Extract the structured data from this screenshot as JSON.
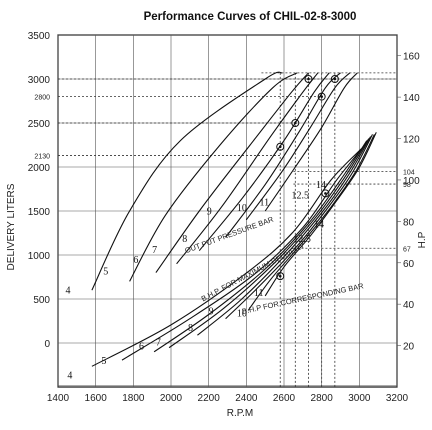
{
  "chart_data": {
    "type": "line",
    "title": "Performance Curves of CHIL-02-8-3000",
    "xlabel": "R.P.M",
    "ylabel": "DELIVERY LITERS",
    "y2label": "H.P",
    "xlim": [
      1400,
      3200
    ],
    "ylim": [
      -500,
      3500
    ],
    "y2lim": [
      0,
      170
    ],
    "x_ticks": [
      "1400",
      "1600",
      "1800",
      "2000",
      "2200",
      "2400",
      "2600",
      "2800",
      "3000",
      "3200"
    ],
    "y_ticks": [
      "0",
      "500",
      "1000",
      "1500",
      "2000",
      "2500",
      "3000",
      "3500"
    ],
    "y2_ticks": [
      "20",
      "40",
      "60",
      "80",
      "100",
      "120",
      "140",
      "160"
    ],
    "y_special_ticks": [
      "2130",
      "2800"
    ],
    "y2_special_ticks": [
      "67",
      "98",
      "104"
    ],
    "grid": true,
    "delivery_curves": [
      {
        "name": "4",
        "points": [
          [
            1580,
            600
          ],
          [
            1780,
            1500
          ],
          [
            2050,
            2300
          ],
          [
            2500,
            3000
          ],
          [
            2590,
            3070
          ]
        ]
      },
      {
        "name": "5",
        "points": [
          [
            1780,
            700
          ],
          [
            1970,
            1450
          ],
          [
            2260,
            2250
          ],
          [
            2540,
            2900
          ],
          [
            2670,
            3070
          ]
        ]
      },
      {
        "name": "6",
        "points": [
          [
            1920,
            800
          ],
          [
            2150,
            1500
          ],
          [
            2420,
            2250
          ],
          [
            2640,
            2850
          ],
          [
            2730,
            3070
          ]
        ]
      },
      {
        "name": "7",
        "points": [
          [
            2030,
            900
          ],
          [
            2270,
            1550
          ],
          [
            2530,
            2350
          ],
          [
            2700,
            2850
          ],
          [
            2780,
            3070
          ]
        ]
      },
      {
        "name": "8",
        "points": [
          [
            2150,
            1050
          ],
          [
            2380,
            1650
          ],
          [
            2600,
            2300
          ],
          [
            2760,
            2850
          ],
          [
            2840,
            3070
          ]
        ]
      },
      {
        "name": "9",
        "points": [
          [
            2290,
            1200
          ],
          [
            2500,
            1800
          ],
          [
            2680,
            2400
          ],
          [
            2820,
            2900
          ],
          [
            2900,
            3070
          ]
        ]
      },
      {
        "name": "10",
        "points": [
          [
            2400,
            1400
          ],
          [
            2590,
            1950
          ],
          [
            2740,
            2450
          ],
          [
            2870,
            2900
          ],
          [
            2950,
            3070
          ]
        ]
      },
      {
        "name": "11",
        "points": [
          [
            2500,
            1500
          ],
          [
            2660,
            2000
          ],
          [
            2800,
            2450
          ],
          [
            2920,
            2900
          ],
          [
            2990,
            3070
          ]
        ]
      }
    ],
    "hp_curves": [
      {
        "name": "4",
        "points": [
          [
            1580,
            10
          ],
          [
            2000,
            30
          ],
          [
            2400,
            55
          ],
          [
            2650,
            75
          ],
          [
            2850,
            100
          ],
          [
            3010,
            115
          ]
        ]
      },
      {
        "name": "5",
        "points": [
          [
            1740,
            13
          ],
          [
            2100,
            33
          ],
          [
            2450,
            55
          ],
          [
            2700,
            77
          ],
          [
            2880,
            100
          ],
          [
            3030,
            117
          ]
        ]
      },
      {
        "name": "6",
        "points": [
          [
            1910,
            17
          ],
          [
            2200,
            35
          ],
          [
            2500,
            57
          ],
          [
            2730,
            79
          ],
          [
            2900,
            100
          ],
          [
            3040,
            119
          ]
        ]
      },
      {
        "name": "7",
        "points": [
          [
            1990,
            19
          ],
          [
            2280,
            38
          ],
          [
            2550,
            60
          ],
          [
            2760,
            81
          ],
          [
            2920,
            101
          ],
          [
            3050,
            120
          ]
        ]
      },
      {
        "name": "8",
        "points": [
          [
            2140,
            25
          ],
          [
            2370,
            42
          ],
          [
            2600,
            63
          ],
          [
            2790,
            83
          ],
          [
            2940,
            102
          ],
          [
            3060,
            121
          ]
        ]
      },
      {
        "name": "9",
        "points": [
          [
            2290,
            33
          ],
          [
            2450,
            47
          ],
          [
            2650,
            66
          ],
          [
            2820,
            85
          ],
          [
            2960,
            103
          ],
          [
            3070,
            122
          ]
        ]
      },
      {
        "name": "10",
        "points": [
          [
            2410,
            37
          ],
          [
            2530,
            52
          ],
          [
            2700,
            70
          ],
          [
            2850,
            87
          ],
          [
            2980,
            104
          ],
          [
            3080,
            122
          ]
        ]
      },
      {
        "name": "11",
        "points": [
          [
            2500,
            44
          ],
          [
            2600,
            58
          ],
          [
            2740,
            73
          ],
          [
            2880,
            90
          ],
          [
            3000,
            106
          ],
          [
            3090,
            123
          ]
        ]
      }
    ],
    "delivery_label_positions": [
      {
        "name": "4",
        "x": 1440,
        "y": 560
      },
      {
        "name": "5",
        "x": 1640,
        "y": 780
      },
      {
        "name": "6",
        "x": 1800,
        "y": 910
      },
      {
        "name": "7",
        "x": 1900,
        "y": 1020
      },
      {
        "name": "8",
        "x": 2060,
        "y": 1150
      },
      {
        "name": "9",
        "x": 2190,
        "y": 1460
      },
      {
        "name": "10",
        "x": 2350,
        "y": 1500
      },
      {
        "name": "11",
        "x": 2470,
        "y": 1560
      },
      {
        "name": "12.5",
        "x": 2640,
        "y": 1640
      },
      {
        "name": "14",
        "x": 2770,
        "y": 1760
      }
    ],
    "hp_label_positions": [
      {
        "name": "4",
        "x": 1450,
        "y": 4
      },
      {
        "name": "5",
        "x": 1630,
        "y": 11
      },
      {
        "name": "6",
        "x": 1830,
        "y": 18
      },
      {
        "name": "7",
        "x": 1920,
        "y": 20
      },
      {
        "name": "8",
        "x": 2090,
        "y": 27
      },
      {
        "name": "9",
        "x": 2200,
        "y": 35
      },
      {
        "name": "10",
        "x": 2350,
        "y": 34
      },
      {
        "name": "11",
        "x": 2440,
        "y": 44
      },
      {
        "name": "12.5",
        "x": 2650,
        "y": 70
      },
      {
        "name": "14",
        "x": 2760,
        "y": 77
      }
    ],
    "annotations": [
      "OUT PUT PRESSURE BAR",
      "B.H.P. FOR MAXIMUM DELIVERY",
      "B.H.P FOR CORRESPONDING BAR"
    ],
    "markers": [
      {
        "x": 2730,
        "y": 3000
      },
      {
        "x": 2800,
        "y": 2800
      },
      {
        "x": 2870,
        "y": 3000
      },
      {
        "x": 2660,
        "y": 2500
      },
      {
        "x": 2580,
        "y": 2230
      },
      {
        "x": 2820,
        "y": 1700
      },
      {
        "x": 2580,
        "y": 760
      }
    ]
  }
}
